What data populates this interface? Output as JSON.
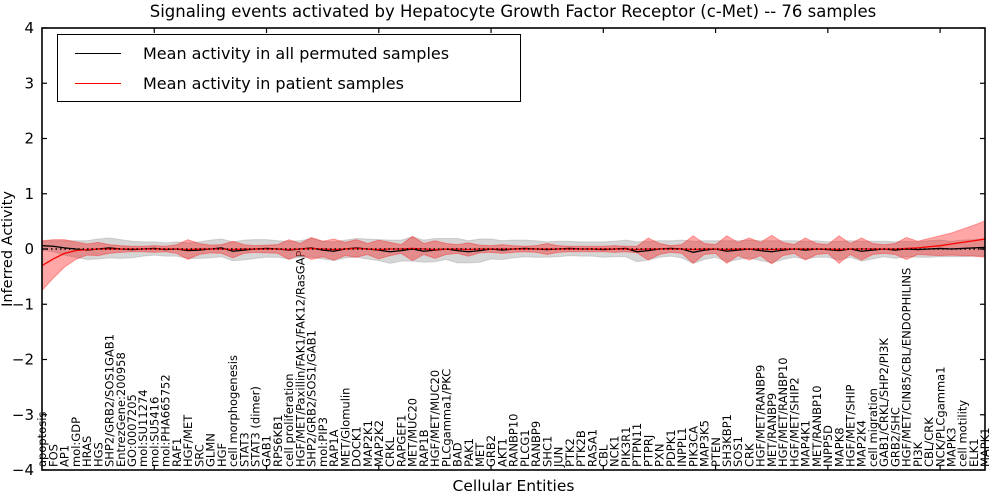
{
  "figure": {
    "title": "Signaling events activated by Hepatocyte Growth Factor Receptor (c-Met) -- 76 samples",
    "xlabel": "Cellular Entities",
    "ylabel": "Inferred Activity"
  },
  "legend": {
    "items": [
      {
        "label": "Mean activity in all permuted samples",
        "color": "#000000"
      },
      {
        "label": "Mean activity in patient samples",
        "color": "#ff0000"
      }
    ],
    "position": "upper left"
  },
  "colors": {
    "permuted_line": "#000000",
    "patient_line": "#ff0000",
    "permuted_band": "#999999",
    "patient_band": "#ff0000",
    "axis": "#000000"
  },
  "chart_data": {
    "type": "line",
    "title": "Signaling events activated by Hepatocyte Growth Factor Receptor (c-Met) -- 76 samples",
    "xlabel": "Cellular Entities",
    "ylabel": "Inferred Activity",
    "ylim": [
      -4,
      4
    ],
    "yticks": [
      4,
      3,
      2,
      1,
      0,
      -1,
      -2,
      -3,
      -4
    ],
    "x_major_ticks": [
      10,
      20,
      30,
      40,
      50,
      60,
      70,
      80
    ],
    "grid": false,
    "legend_position": "upper left",
    "zero_line": true,
    "categories": [
      "apoptosis",
      "FOS",
      "AP1",
      "mol:GDP",
      "HRAS",
      "HGS",
      "SHP2/GRB2/SOS1GAB1",
      "EntrezGene:200958",
      "GO:0007205",
      "mol:SU11274",
      "mol:SU5416",
      "mol:PHA665752",
      "RAF1",
      "HGF/MET",
      "SRC",
      "GLMN",
      "HGF",
      "cell morphogenesis",
      "STAT3",
      "STAT3 (dimer)",
      "GAB1",
      "RPS6KB1",
      "cell proliferation",
      "HGF/MET/Paxillin/FAK1/FAK12/RasGAP",
      "SHP2/GRB2/SOS1/GAB1",
      "mol:PIP3",
      "RAP1A",
      "MET/Glomulin",
      "DOCK1",
      "MAP2K1",
      "MAP2K2",
      "CRKL",
      "RAPGEF1",
      "MET/MUC20",
      "RAP1B",
      "HGF/MET/MUC20",
      "PLCgamma1/PKC",
      "BAD",
      "PAK1",
      "MET",
      "GRB2",
      "AKT1",
      "RANBP10",
      "PLCG1",
      "RANBP9",
      "SHC1",
      "JUN",
      "PTK2",
      "PTK2B",
      "RASA1",
      "CBL",
      "NCK1",
      "PIK3R1",
      "PTPN11",
      "PTPRJ",
      "PXN",
      "PDPK1",
      "INPPL1",
      "PIK3CA",
      "MAP3K5",
      "PTEN",
      "SH3KBP1",
      "SOS1",
      "CRK",
      "HGF/MET/RANBP9",
      "MET/RANBP9",
      "HGF/MET/RANBP10",
      "HGF/MET/SHIP2",
      "MAP4K1",
      "MET/RANBP10",
      "INPP5D",
      "MAPK8",
      "HGF/MET/SHIP",
      "MAP2K4",
      "cell migration",
      "GAB1/CRKL/SHP2/PI3K",
      "GRB2/SHC",
      "HGF/MET/CIN85/CBL/ENDOPHILINS",
      "PI3K",
      "CBL/CRK",
      "NCK/PLCgamma1",
      "MAPK3",
      "cell motility",
      "ELK1",
      "MAPK1"
    ],
    "series": [
      {
        "name": "Mean activity in all permuted samples",
        "color": "#000000",
        "band_color": "#999999",
        "band_opacity": 0.4,
        "values": [
          0.06,
          0.05,
          0.02,
          0,
          -0.02,
          0,
          0.02,
          0,
          -0.01,
          0,
          0.01,
          -0.01,
          0,
          -0.03,
          -0.02,
          0,
          0.02,
          -0.04,
          -0.02,
          0,
          0.01,
          0,
          -0.02,
          0,
          0.02,
          -0.02,
          -0.04,
          0,
          0.02,
          0,
          -0.02,
          -0.05,
          -0.03,
          0,
          -0.04,
          -0.02,
          0,
          -0.03,
          -0.05,
          -0.03,
          0,
          -0.02,
          0,
          0.01,
          0,
          -0.01,
          0,
          0.01,
          0,
          0,
          -0.01,
          0,
          0.01,
          -0.05,
          -0.03,
          0,
          0.01,
          0,
          -0.06,
          -0.02,
          0,
          -0.04,
          -0.02,
          0,
          -0.03,
          -0.05,
          -0.02,
          0,
          -0.02,
          0,
          -0.01,
          -0.03,
          0,
          -0.04,
          -0.02,
          0,
          -0.02,
          0,
          -0.01,
          0,
          0.01,
          0,
          0.01,
          0.02,
          0.03
        ],
        "std": [
          0.08,
          0.1,
          0.13,
          0.15,
          0.17,
          0.18,
          0.18,
          0.17,
          0.15,
          0.13,
          0.12,
          0.12,
          0.13,
          0.14,
          0.15,
          0.16,
          0.16,
          0.17,
          0.18,
          0.17,
          0.16,
          0.15,
          0.16,
          0.15,
          0.17,
          0.16,
          0.17,
          0.16,
          0.17,
          0.18,
          0.19,
          0.21,
          0.19,
          0.22,
          0.2,
          0.21,
          0.19,
          0.22,
          0.2,
          0.21,
          0.18,
          0.17,
          0.16,
          0.15,
          0.15,
          0.14,
          0.14,
          0.13,
          0.13,
          0.13,
          0.14,
          0.14,
          0.15,
          0.18,
          0.17,
          0.15,
          0.14,
          0.16,
          0.2,
          0.17,
          0.15,
          0.19,
          0.17,
          0.16,
          0.18,
          0.2,
          0.17,
          0.15,
          0.16,
          0.15,
          0.14,
          0.17,
          0.15,
          0.18,
          0.16,
          0.14,
          0.15,
          0.14,
          0.14,
          0.15,
          0.15,
          0.14,
          0.15,
          0.15,
          0.16
        ]
      },
      {
        "name": "Mean activity in patient samples",
        "color": "#ff0000",
        "band_color": "#ff0000",
        "band_opacity": 0.35,
        "values": [
          -0.3,
          -0.18,
          -0.08,
          -0.03,
          -0.01,
          0,
          0,
          0,
          0,
          0,
          0,
          0,
          0,
          -0.01,
          0,
          0,
          0,
          -0.01,
          0,
          0,
          0,
          0,
          -0.01,
          0,
          0.01,
          0,
          -0.01,
          0,
          0.01,
          0,
          -0.01,
          0,
          0,
          0.01,
          0,
          -0.01,
          0,
          0,
          -0.01,
          0,
          0,
          0,
          0,
          0,
          0,
          0,
          0,
          0,
          0,
          0,
          0,
          0,
          0,
          -0.01,
          0,
          0,
          0,
          0,
          -0.01,
          0,
          0,
          -0.01,
          0,
          0,
          0,
          -0.01,
          0,
          0,
          0,
          0,
          0,
          -0.01,
          0,
          0,
          0,
          0,
          0,
          0.01,
          0.02,
          0.04,
          0.06,
          0.09,
          0.12,
          0.15,
          0.18
        ],
        "std": [
          0.45,
          0.35,
          0.25,
          0.16,
          0.1,
          0.12,
          0.08,
          0.06,
          0.05,
          0.05,
          0.06,
          0.05,
          0.08,
          0.18,
          0.1,
          0.07,
          0.08,
          0.15,
          0.08,
          0.06,
          0.07,
          0.08,
          0.18,
          0.1,
          0.2,
          0.14,
          0.19,
          0.12,
          0.16,
          0.1,
          0.17,
          0.12,
          0.08,
          0.22,
          0.1,
          0.16,
          0.1,
          0.08,
          0.12,
          0.07,
          0.06,
          0.08,
          0.06,
          0.05,
          0.06,
          0.1,
          0.06,
          0.05,
          0.05,
          0.05,
          0.05,
          0.06,
          0.05,
          0.06,
          0.2,
          0.1,
          0.06,
          0.08,
          0.25,
          0.1,
          0.08,
          0.25,
          0.12,
          0.2,
          0.12,
          0.26,
          0.12,
          0.08,
          0.2,
          0.1,
          0.08,
          0.25,
          0.1,
          0.2,
          0.1,
          0.08,
          0.1,
          0.2,
          0.12,
          0.15,
          0.18,
          0.2,
          0.24,
          0.28,
          0.33
        ]
      }
    ]
  }
}
